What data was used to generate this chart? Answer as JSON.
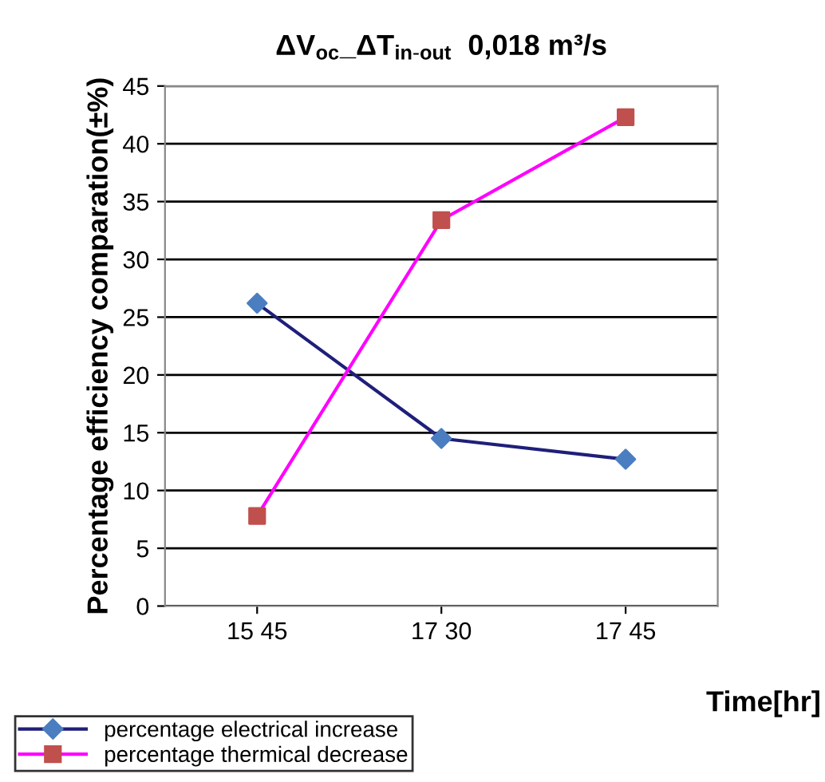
{
  "chart_data": {
    "type": "line",
    "title": "ΔV$_{oc}$_ΔT$_{in-out}$  0,018 m³/s",
    "xlabel": "Time[hr]",
    "ylabel": "Percentage efficiency comparation(±%)",
    "categories": [
      "15 45",
      "17 30",
      "17 45"
    ],
    "series": [
      {
        "name": "percentage electrical increase",
        "color": "#1f1f7a",
        "colors": [
          "#4a7ec0",
          "#4a7ec0",
          "#4a7ec0"
        ],
        "marker": "diamond",
        "values": [
          26.2,
          14.5,
          12.7
        ]
      },
      {
        "name": "percentage thermical decrease",
        "color": "#ff00ff",
        "colors": [
          "#c0504d",
          "#c0504d",
          "#c0504d"
        ],
        "marker": "square",
        "values": [
          7.8,
          33.4,
          42.3
        ]
      }
    ],
    "ylim": [
      0,
      45
    ],
    "yticks": [
      0,
      5,
      10,
      15,
      20,
      25,
      30,
      35,
      40,
      45
    ],
    "grid": "y",
    "legend": "bottom left"
  }
}
